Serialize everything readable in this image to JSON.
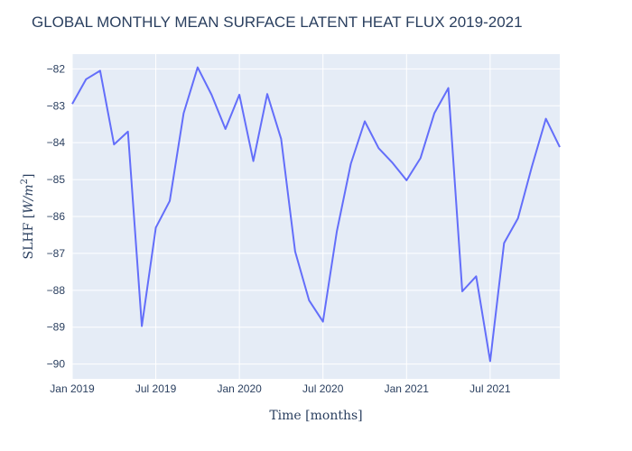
{
  "chart_data": {
    "type": "line",
    "title": "GLOBAL MONTHLY MEAN SURFACE LATENT HEAT FLUX 2019-2021",
    "xlabel": "Time [months]",
    "ylabel": "SLHF [W/m²]",
    "ylabel_parts": {
      "main": "SLHF ",
      "open": "[",
      "unit": "W/m",
      "sup": "2",
      "close": "]"
    },
    "xlim": [
      "2019-01",
      "2021-12"
    ],
    "ylim": [
      -90.4,
      -81.6
    ],
    "grid": true,
    "legend": "none",
    "line_color": "#636efa",
    "plot_bg": "#e5ecf6",
    "x_ticks": [
      {
        "value": "2019-01",
        "label": "Jan 2019"
      },
      {
        "value": "2019-07",
        "label": "Jul 2019"
      },
      {
        "value": "2020-01",
        "label": "Jan 2020"
      },
      {
        "value": "2020-07",
        "label": "Jul 2020"
      },
      {
        "value": "2021-01",
        "label": "Jan 2021"
      },
      {
        "value": "2021-07",
        "label": "Jul 2021"
      }
    ],
    "y_ticks": [
      {
        "value": -82,
        "label": "−82"
      },
      {
        "value": -83,
        "label": "−83"
      },
      {
        "value": -84,
        "label": "−84"
      },
      {
        "value": -85,
        "label": "−85"
      },
      {
        "value": -86,
        "label": "−86"
      },
      {
        "value": -87,
        "label": "−87"
      },
      {
        "value": -88,
        "label": "−88"
      },
      {
        "value": -89,
        "label": "−89"
      },
      {
        "value": -90,
        "label": "−90"
      }
    ],
    "x": [
      "2019-01",
      "2019-02",
      "2019-03",
      "2019-04",
      "2019-05",
      "2019-06",
      "2019-07",
      "2019-08",
      "2019-09",
      "2019-10",
      "2019-11",
      "2019-12",
      "2020-01",
      "2020-02",
      "2020-03",
      "2020-04",
      "2020-05",
      "2020-06",
      "2020-07",
      "2020-08",
      "2020-09",
      "2020-10",
      "2020-11",
      "2020-12",
      "2021-01",
      "2021-02",
      "2021-03",
      "2021-04",
      "2021-05",
      "2021-06",
      "2021-07",
      "2021-08",
      "2021-09",
      "2021-10",
      "2021-11",
      "2021-12"
    ],
    "series": [
      {
        "values": [
          -82.95,
          -82.28,
          -82.05,
          -84.05,
          -83.7,
          -88.97,
          -86.3,
          -85.58,
          -83.2,
          -81.96,
          -82.7,
          -83.63,
          -82.7,
          -84.5,
          -82.68,
          -83.9,
          -86.95,
          -88.27,
          -88.85,
          -86.4,
          -84.57,
          -83.42,
          -84.15,
          -84.55,
          -85.02,
          -84.42,
          -83.2,
          -82.52,
          -88.03,
          -87.62,
          -89.92,
          -86.72,
          -86.05,
          -84.65,
          -83.35,
          -84.12
        ]
      }
    ]
  }
}
